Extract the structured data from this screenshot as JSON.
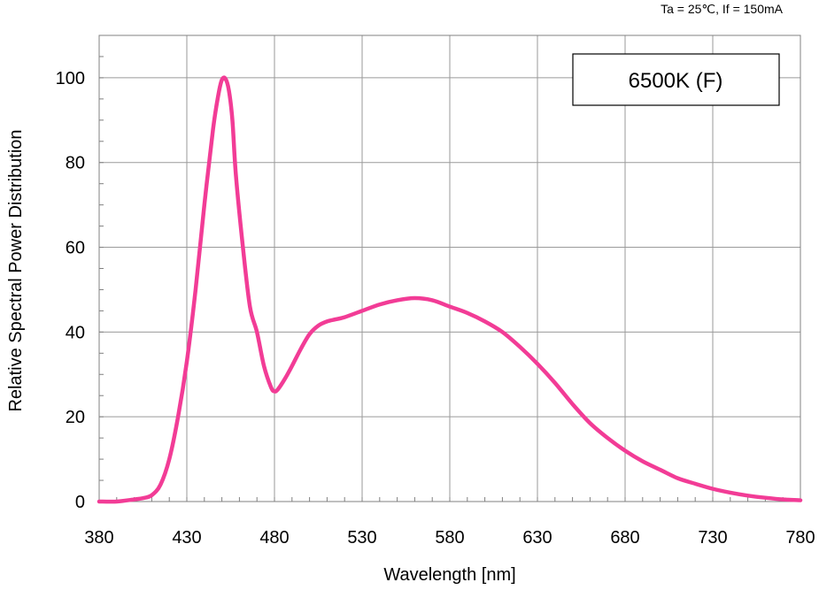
{
  "chart_data": {
    "type": "line",
    "title": "",
    "conditions": "Ta = 25℃,  If = 150mA",
    "legend_box": "6500K (F)",
    "xlabel": "Wavelength [nm]",
    "ylabel": "Relative Spectral Power Distribution",
    "xlim": [
      380,
      780
    ],
    "ylim": [
      0,
      110
    ],
    "x_ticks": [
      380,
      430,
      480,
      530,
      580,
      630,
      680,
      730,
      780
    ],
    "y_ticks": [
      0,
      20,
      40,
      60,
      80,
      100
    ],
    "x_tick_labels": [
      "380",
      "430",
      "480",
      "530",
      "580",
      "630",
      "680",
      "730",
      "780"
    ],
    "y_tick_labels": [
      "0",
      "20",
      "40",
      "60",
      "80",
      "100"
    ],
    "grid": true,
    "series": [
      {
        "color": "#f23c96",
        "x": [
          380,
          390,
          400,
          405,
          410,
          415,
          420,
          425,
          430,
          435,
          440,
          445,
          448,
          450,
          452,
          454,
          456,
          458,
          462,
          466,
          470,
          474,
          478,
          480,
          482,
          486,
          490,
          495,
          500,
          505,
          510,
          515,
          520,
          530,
          540,
          550,
          560,
          570,
          580,
          590,
          600,
          610,
          620,
          630,
          640,
          650,
          660,
          670,
          680,
          690,
          700,
          710,
          720,
          730,
          740,
          750,
          760,
          770,
          780
        ],
        "values": [
          0,
          0,
          0.5,
          0.8,
          1.5,
          4,
          10,
          20,
          33,
          50,
          70,
          88,
          96,
          99.5,
          99.8,
          97,
          90,
          77,
          60,
          46,
          40,
          32,
          27,
          26,
          26.5,
          29,
          32,
          36,
          39.5,
          41.5,
          42.5,
          43,
          43.5,
          45,
          46.5,
          47.5,
          48,
          47.5,
          46,
          44.5,
          42.5,
          40,
          36.5,
          32.5,
          28,
          23,
          18.5,
          15,
          12,
          9.5,
          7.5,
          5.5,
          4.2,
          3,
          2.1,
          1.4,
          0.9,
          0.5,
          0.3
        ]
      }
    ]
  }
}
